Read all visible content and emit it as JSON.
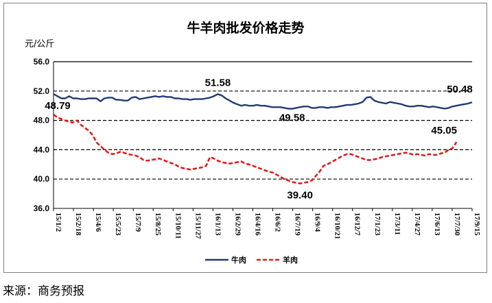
{
  "chart_data": {
    "type": "line",
    "title": "牛羊肉批发价格走势",
    "ylabel": "元/公斤",
    "ylim": [
      36,
      56
    ],
    "yticks": [
      "56.0",
      "52.0",
      "48.0",
      "44.0",
      "40.0",
      "36.0"
    ],
    "grid": "dashed horizontal at 52, 48, 44, 40",
    "legend_position": "bottom-center",
    "x_ticks": [
      "15/1/2",
      "15/2/18",
      "15/4/6",
      "15/5/23",
      "15/7/9",
      "15/8/25",
      "15/10/11",
      "15/11/27",
      "16/1/13",
      "16/2/29",
      "16/4/16",
      "16/6/2",
      "16/7/19",
      "16/9/4",
      "16/10/21",
      "16/12/7",
      "17/1/23",
      "17/3/11",
      "17/4/27",
      "17/6/13",
      "17/7/30",
      "17/9/15"
    ],
    "series": [
      {
        "name": "牛肉",
        "color": "#1f3b70",
        "style": "solid",
        "values": [
          51.6,
          51.3,
          51.0,
          51.0,
          51.3,
          51.0,
          51.0,
          50.9,
          50.9,
          51.0,
          51.0,
          51.0,
          50.6,
          51.0,
          51.1,
          51.1,
          50.8,
          50.8,
          50.7,
          50.7,
          51.1,
          51.2,
          50.9,
          51.0,
          51.1,
          51.2,
          51.3,
          51.2,
          51.3,
          51.2,
          51.2,
          51.0,
          51.0,
          50.9,
          50.9,
          50.8,
          50.9,
          50.9,
          50.9,
          51.0,
          51.1,
          51.3,
          51.58,
          51.4,
          51.0,
          50.7,
          50.4,
          50.2,
          50.0,
          50.1,
          50.0,
          50.0,
          50.1,
          50.0,
          50.0,
          49.9,
          49.8,
          49.8,
          49.8,
          49.7,
          49.6,
          49.58,
          49.7,
          49.8,
          49.9,
          49.9,
          49.7,
          49.7,
          49.8,
          49.8,
          49.7,
          49.8,
          49.8,
          49.9,
          50.0,
          50.1,
          50.1,
          50.2,
          50.3,
          50.5,
          51.1,
          51.2,
          50.7,
          50.5,
          50.4,
          50.3,
          50.5,
          50.4,
          50.3,
          50.2,
          50.0,
          49.9,
          49.9,
          50.0,
          50.0,
          49.9,
          49.8,
          49.9,
          49.8,
          49.7,
          49.6,
          49.7,
          49.9,
          50.0,
          50.1,
          50.2,
          50.3,
          50.48
        ]
      },
      {
        "name": "羊肉",
        "color": "#e01b1b",
        "style": "dashed",
        "values": [
          48.79,
          48.4,
          48.2,
          48.0,
          47.8,
          47.7,
          48.0,
          47.4,
          47.0,
          46.6,
          46.0,
          45.0,
          44.5,
          44.0,
          43.6,
          43.4,
          43.5,
          43.7,
          43.6,
          43.4,
          43.3,
          43.2,
          43.0,
          42.6,
          42.5,
          42.6,
          42.7,
          42.8,
          42.6,
          42.4,
          42.2,
          42.0,
          41.7,
          41.5,
          41.4,
          41.3,
          41.4,
          41.5,
          41.6,
          41.8,
          43.0,
          42.8,
          42.5,
          42.3,
          42.2,
          42.1,
          42.2,
          42.3,
          42.4,
          42.1,
          42.0,
          41.8,
          41.6,
          41.4,
          41.2,
          41.0,
          40.9,
          40.6,
          40.3,
          40.0,
          39.8,
          39.6,
          39.5,
          39.4,
          39.5,
          39.6,
          39.8,
          40.4,
          41.0,
          41.8,
          42.0,
          42.3,
          42.6,
          42.9,
          43.2,
          43.4,
          43.4,
          43.2,
          43.0,
          42.8,
          42.6,
          42.6,
          42.7,
          42.8,
          43.0,
          43.1,
          43.2,
          43.3,
          43.4,
          43.5,
          43.6,
          43.5,
          43.3,
          43.4,
          43.3,
          43.2,
          43.4,
          43.3,
          43.3,
          43.5,
          43.6,
          44.0,
          44.2,
          45.05
        ]
      }
    ],
    "annotations": [
      {
        "text": "51.58",
        "x_index": 42,
        "value": 51.58
      },
      {
        "text": "48.79",
        "x_index": 0,
        "value": 48.79
      },
      {
        "text": "49.58",
        "x_index": 61,
        "value": 49.58
      },
      {
        "text": "39.40",
        "x_index": 63,
        "value": 39.4
      },
      {
        "text": "50.48",
        "x_index": 107,
        "value": 50.48
      },
      {
        "text": "45.05",
        "x_index": 103,
        "value": 45.05
      }
    ]
  },
  "source_note": "来源：商务预报"
}
